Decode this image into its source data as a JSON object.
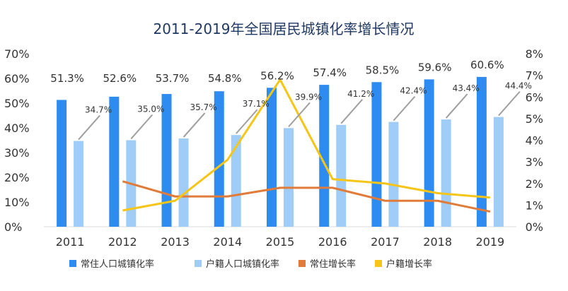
{
  "chart_data": {
    "type": "bar",
    "title": "2011-2019年全国居民城镇化率增长情况",
    "categories": [
      "2011",
      "2012",
      "2013",
      "2014",
      "2015",
      "2016",
      "2017",
      "2018",
      "2019"
    ],
    "y_left": {
      "min": 0,
      "max": 70,
      "ticks": [
        "0%",
        "10%",
        "20%",
        "30%",
        "40%",
        "50%",
        "60%",
        "70%"
      ]
    },
    "y_right": {
      "min": 0,
      "max": 8,
      "ticks": [
        "0%",
        "1%",
        "2%",
        "3%",
        "4%",
        "5%",
        "6%",
        "7%",
        "8%"
      ]
    },
    "series": [
      {
        "name": "常住人口城镇化率",
        "kind": "bar",
        "axis": "left",
        "color": "#2e8cf0",
        "values": [
          51.3,
          52.6,
          53.7,
          54.8,
          56.2,
          57.4,
          58.5,
          59.6,
          60.6
        ],
        "labels": [
          "51.3%",
          "52.6%",
          "53.7%",
          "54.8%",
          "56.2%",
          "57.4%",
          "58.5%",
          "59.6%",
          "60.6%"
        ]
      },
      {
        "name": "户籍人口城镇化率",
        "kind": "bar",
        "axis": "left",
        "color": "#9fcdf8",
        "values": [
          34.7,
          35.0,
          35.7,
          37.1,
          39.9,
          41.2,
          42.4,
          43.4,
          44.4
        ],
        "labels": [
          "34.7%",
          "35.0%",
          "35.7%",
          "37.1%",
          "39.9%",
          "41.2%",
          "42.4%",
          "43.4%",
          "44.4%"
        ]
      },
      {
        "name": "常住增长率",
        "kind": "line",
        "axis": "right",
        "color": "#e07b39",
        "values": [
          null,
          2.1,
          1.4,
          1.4,
          1.8,
          1.8,
          1.2,
          1.2,
          0.7
        ]
      },
      {
        "name": "户籍增长率",
        "kind": "line",
        "axis": "right",
        "color": "#f5c518",
        "values": [
          null,
          0.75,
          1.2,
          3.1,
          6.8,
          2.2,
          2.0,
          1.55,
          1.35
        ]
      }
    ],
    "grid": false,
    "legend_position": "bottom"
  }
}
